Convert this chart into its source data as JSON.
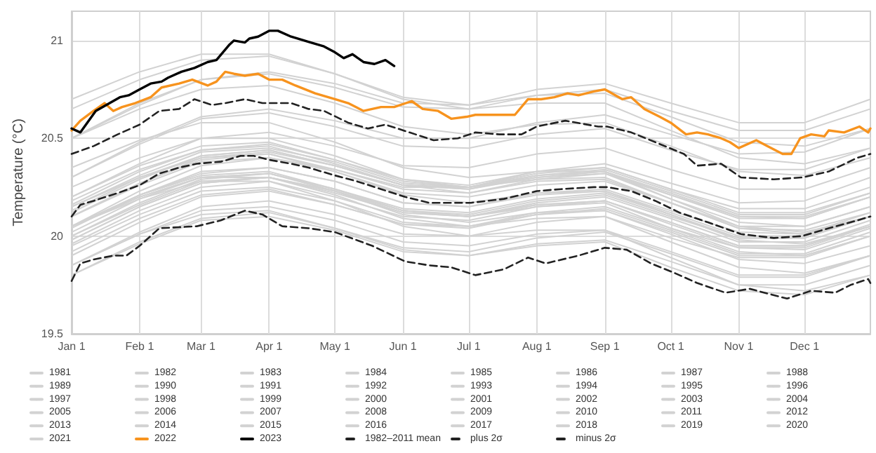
{
  "chart_data": {
    "type": "line",
    "ylabel": "Temperature (°C)",
    "xlim": [
      "--01-01",
      "--12-31"
    ],
    "ylim": [
      19.5,
      21.15
    ],
    "xticks": [
      {
        "value": "--01-01",
        "label": "Jan 1"
      },
      {
        "value": "--02-01",
        "label": "Feb 1"
      },
      {
        "value": "--03-01",
        "label": "Mar 1"
      },
      {
        "value": "--04-01",
        "label": "Apr 1"
      },
      {
        "value": "--05-01",
        "label": "May 1"
      },
      {
        "value": "--06-01",
        "label": "Jun 1"
      },
      {
        "value": "--07-01",
        "label": "Jul 1"
      },
      {
        "value": "--08-01",
        "label": "Aug 1"
      },
      {
        "value": "--09-01",
        "label": "Sep 1"
      },
      {
        "value": "--10-01",
        "label": "Oct 1"
      },
      {
        "value": "--11-01",
        "label": "Nov 1"
      },
      {
        "value": "--12-01",
        "label": "Dec 1"
      }
    ],
    "yticks": [
      19.5,
      20,
      20.5,
      21
    ],
    "grid": true,
    "legend": "bottom",
    "line_style": "solid",
    "x": [
      "--01-01",
      "--02-01",
      "--03-01",
      "--04-01",
      "--05-01",
      "--06-01",
      "--07-01",
      "--08-01",
      "--09-01",
      "--10-01",
      "--11-01",
      "--12-01",
      "--12-31"
    ],
    "series": [
      {
        "name": "1981",
        "color": "#d2d2d2",
        "values": [
          19.85,
          20.01,
          20.13,
          20.15,
          20.08,
          19.97,
          19.95,
          20.01,
          20.03,
          19.92,
          19.8,
          19.8,
          19.9
        ]
      },
      {
        "name": "1982",
        "color": "#d2d2d2",
        "values": [
          19.9,
          20.07,
          20.2,
          20.23,
          20.16,
          20.06,
          20.05,
          20.12,
          20.15,
          20.04,
          19.94,
          19.94,
          20.05
        ]
      },
      {
        "name": "1983",
        "color": "#d2d2d2",
        "values": [
          20.05,
          20.2,
          20.3,
          20.32,
          20.23,
          20.11,
          20.07,
          20.12,
          20.13,
          20.01,
          19.88,
          19.86,
          19.95
        ]
      },
      {
        "name": "1984",
        "color": "#d2d2d2",
        "values": [
          19.85,
          20.01,
          20.11,
          20.13,
          20.04,
          19.93,
          19.9,
          19.95,
          19.97,
          19.84,
          19.72,
          19.7,
          19.8
        ]
      },
      {
        "name": "1985",
        "color": "#d2d2d2",
        "values": [
          19.8,
          19.96,
          20.08,
          20.1,
          20.03,
          19.92,
          19.9,
          19.96,
          19.98,
          19.87,
          19.75,
          19.75,
          19.85
        ]
      },
      {
        "name": "1986",
        "color": "#d2d2d2",
        "values": [
          19.85,
          20.02,
          20.15,
          20.18,
          20.11,
          20.01,
          20.0,
          20.07,
          20.1,
          19.99,
          19.89,
          19.89,
          20.0
        ]
      },
      {
        "name": "1987",
        "color": "#d2d2d2",
        "values": [
          20.0,
          20.16,
          20.28,
          20.3,
          20.23,
          20.12,
          20.1,
          20.16,
          20.18,
          20.07,
          19.95,
          19.95,
          20.05
        ]
      },
      {
        "name": "1988",
        "color": "#d2d2d2",
        "values": [
          20.05,
          20.19,
          20.28,
          20.28,
          20.18,
          20.05,
          20.0,
          20.03,
          20.03,
          19.89,
          19.75,
          19.72,
          19.8
        ]
      },
      {
        "name": "1989",
        "color": "#d2d2d2",
        "values": [
          19.8,
          19.97,
          20.09,
          20.12,
          20.04,
          19.94,
          19.92,
          19.99,
          20.02,
          19.91,
          19.79,
          19.79,
          19.9
        ]
      },
      {
        "name": "1990",
        "color": "#d2d2d2",
        "values": [
          19.95,
          20.11,
          20.23,
          20.25,
          20.18,
          20.07,
          20.05,
          20.11,
          20.13,
          20.02,
          19.9,
          19.9,
          20.0
        ]
      },
      {
        "name": "1991",
        "color": "#d2d2d2",
        "values": [
          19.98,
          20.15,
          20.27,
          20.3,
          20.22,
          20.12,
          20.1,
          20.17,
          20.2,
          20.09,
          19.97,
          19.97,
          20.08
        ]
      },
      {
        "name": "1992",
        "color": "#d2d2d2",
        "values": [
          20.05,
          20.2,
          20.3,
          20.3,
          20.21,
          20.09,
          20.05,
          20.09,
          20.1,
          19.97,
          19.84,
          19.81,
          19.9
        ]
      },
      {
        "name": "1993",
        "color": "#d2d2d2",
        "values": [
          19.92,
          20.09,
          20.21,
          20.24,
          20.16,
          20.06,
          20.04,
          20.11,
          20.14,
          20.03,
          19.91,
          19.91,
          20.02
        ]
      },
      {
        "name": "1994",
        "color": "#d2d2d2",
        "values": [
          20.0,
          20.17,
          20.29,
          20.32,
          20.24,
          20.14,
          20.12,
          20.19,
          20.22,
          20.11,
          19.99,
          19.99,
          20.1
        ]
      },
      {
        "name": "1995",
        "color": "#d2d2d2",
        "values": [
          20.05,
          20.21,
          20.31,
          20.33,
          20.24,
          20.13,
          20.1,
          20.15,
          20.17,
          20.04,
          19.92,
          19.9,
          20.0
        ]
      },
      {
        "name": "1996",
        "color": "#d2d2d2",
        "values": [
          20.02,
          20.19,
          20.3,
          20.32,
          20.24,
          20.13,
          20.1,
          20.16,
          20.18,
          20.06,
          19.94,
          19.93,
          20.04
        ]
      },
      {
        "name": "1997",
        "color": "#d2d2d2",
        "values": [
          20.05,
          20.23,
          20.36,
          20.4,
          20.34,
          20.25,
          20.25,
          20.33,
          20.37,
          20.27,
          20.17,
          20.18,
          20.3
        ]
      },
      {
        "name": "1998",
        "color": "#d2d2d2",
        "values": [
          20.35,
          20.49,
          20.58,
          20.58,
          20.48,
          20.35,
          20.3,
          20.33,
          20.33,
          20.19,
          20.05,
          20.02,
          20.1
        ]
      },
      {
        "name": "1999",
        "color": "#d2d2d2",
        "values": [
          19.96,
          20.13,
          20.25,
          20.28,
          20.2,
          20.1,
          20.08,
          20.15,
          20.18,
          20.07,
          19.95,
          19.95,
          20.06
        ]
      },
      {
        "name": "2000",
        "color": "#d2d2d2",
        "values": [
          20.04,
          20.21,
          20.32,
          20.35,
          20.28,
          20.17,
          20.15,
          20.22,
          20.24,
          20.13,
          20.02,
          20.01,
          20.12
        ]
      },
      {
        "name": "2001",
        "color": "#d2d2d2",
        "values": [
          20.1,
          20.26,
          20.38,
          20.4,
          20.33,
          20.22,
          20.2,
          20.26,
          20.28,
          20.17,
          20.05,
          20.05,
          20.15
        ]
      },
      {
        "name": "2002",
        "color": "#d2d2d2",
        "values": [
          20.15,
          20.31,
          20.43,
          20.45,
          20.38,
          20.27,
          20.25,
          20.31,
          20.33,
          20.22,
          20.1,
          20.1,
          20.2
        ]
      },
      {
        "name": "2003",
        "color": "#d2d2d2",
        "values": [
          20.2,
          20.36,
          20.46,
          20.48,
          20.39,
          20.28,
          20.25,
          20.3,
          20.32,
          20.19,
          20.07,
          20.05,
          20.15
        ]
      },
      {
        "name": "2004",
        "color": "#d2d2d2",
        "values": [
          20.12,
          20.29,
          20.41,
          20.44,
          20.36,
          20.26,
          20.24,
          20.31,
          20.34,
          20.23,
          20.11,
          20.11,
          20.22
        ]
      },
      {
        "name": "2005",
        "color": "#d2d2d2",
        "values": [
          20.18,
          20.34,
          20.44,
          20.46,
          20.37,
          20.26,
          20.22,
          20.28,
          20.29,
          20.17,
          20.04,
          20.03,
          20.12
        ]
      },
      {
        "name": "2006",
        "color": "#d2d2d2",
        "values": [
          20.1,
          20.27,
          20.39,
          20.42,
          20.34,
          20.24,
          20.22,
          20.29,
          20.32,
          20.21,
          20.09,
          20.09,
          20.2
        ]
      },
      {
        "name": "2007",
        "color": "#d2d2d2",
        "values": [
          20.15,
          20.3,
          20.4,
          20.42,
          20.33,
          20.21,
          20.17,
          20.22,
          20.23,
          20.11,
          19.98,
          19.96,
          20.05
        ]
      },
      {
        "name": "2008",
        "color": "#d2d2d2",
        "values": [
          19.98,
          20.15,
          20.27,
          20.3,
          20.23,
          20.13,
          20.11,
          20.18,
          20.21,
          20.1,
          19.99,
          19.99,
          20.1
        ]
      },
      {
        "name": "2009",
        "color": "#d2d2d2",
        "values": [
          20.1,
          20.27,
          20.4,
          20.43,
          20.36,
          20.26,
          20.25,
          20.32,
          20.35,
          20.24,
          20.14,
          20.14,
          20.25
        ]
      },
      {
        "name": "2010",
        "color": "#d2d2d2",
        "values": [
          20.25,
          20.4,
          20.5,
          20.5,
          20.41,
          20.29,
          20.25,
          20.29,
          20.3,
          20.17,
          20.04,
          20.01,
          20.1
        ]
      },
      {
        "name": "2011",
        "color": "#d2d2d2",
        "values": [
          20.05,
          20.21,
          20.33,
          20.35,
          20.28,
          20.17,
          20.15,
          20.21,
          20.23,
          20.12,
          20.0,
          20.0,
          20.1
        ]
      },
      {
        "name": "2012",
        "color": "#d2d2d2",
        "values": [
          20.13,
          20.3,
          20.41,
          20.44,
          20.36,
          20.26,
          20.24,
          20.3,
          20.33,
          20.21,
          20.1,
          20.09,
          20.2
        ]
      },
      {
        "name": "2013",
        "color": "#d2d2d2",
        "values": [
          20.16,
          20.33,
          20.44,
          20.47,
          20.39,
          20.29,
          20.26,
          20.33,
          20.35,
          20.24,
          20.12,
          20.12,
          20.22
        ]
      },
      {
        "name": "2014",
        "color": "#d2d2d2",
        "values": [
          20.2,
          20.37,
          20.5,
          20.53,
          20.46,
          20.36,
          20.35,
          20.42,
          20.45,
          20.34,
          20.24,
          20.24,
          20.35
        ]
      },
      {
        "name": "2015",
        "color": "#d2d2d2",
        "values": [
          20.3,
          20.48,
          20.61,
          20.65,
          20.59,
          20.5,
          20.5,
          20.58,
          20.62,
          20.52,
          20.42,
          20.43,
          20.55
        ]
      },
      {
        "name": "2016",
        "color": "#d2d2d2",
        "values": [
          20.7,
          20.84,
          20.93,
          20.93,
          20.83,
          20.7,
          20.65,
          20.68,
          20.68,
          20.54,
          20.4,
          20.37,
          20.45
        ]
      },
      {
        "name": "2017",
        "color": "#d2d2d2",
        "values": [
          20.5,
          20.65,
          20.75,
          20.77,
          20.68,
          20.56,
          20.52,
          20.57,
          20.58,
          20.46,
          20.33,
          20.31,
          20.4
        ]
      },
      {
        "name": "2018",
        "color": "#d2d2d2",
        "values": [
          20.3,
          20.47,
          20.6,
          20.63,
          20.56,
          20.46,
          20.45,
          20.52,
          20.55,
          20.44,
          20.34,
          20.34,
          20.45
        ]
      },
      {
        "name": "2019",
        "color": "#d2d2d2",
        "values": [
          20.5,
          20.67,
          20.8,
          20.83,
          20.76,
          20.66,
          20.65,
          20.72,
          20.75,
          20.64,
          20.54,
          20.54,
          20.65
        ]
      },
      {
        "name": "2020",
        "color": "#d2d2d2",
        "values": [
          20.65,
          20.8,
          20.9,
          20.92,
          20.83,
          20.71,
          20.67,
          20.72,
          20.73,
          20.61,
          20.48,
          20.46,
          20.55
        ]
      },
      {
        "name": "2021",
        "color": "#d2d2d2",
        "values": [
          20.5,
          20.68,
          20.8,
          20.84,
          20.78,
          20.68,
          20.67,
          20.75,
          20.78,
          20.68,
          20.58,
          20.58,
          20.7
        ]
      },
      {
        "name": "2022",
        "color": "#f7931e",
        "x": [
          "--01-01",
          "--01-05",
          "--01-11",
          "--01-16",
          "--01-20",
          "--01-24",
          "--01-30",
          "--02-06",
          "--02-11",
          "--02-19",
          "--02-25",
          "--03-04",
          "--03-08",
          "--03-12",
          "--03-16",
          "--03-21",
          "--03-27",
          "--04-01",
          "--04-07",
          "--04-13",
          "--04-22",
          "--05-01",
          "--05-07",
          "--05-14",
          "--05-22",
          "--05-28",
          "--06-05",
          "--06-10",
          "--06-17",
          "--06-23",
          "--06-30",
          "--07-04",
          "--07-15",
          "--07-22",
          "--07-28",
          "--08-03",
          "--08-09",
          "--08-15",
          "--08-20",
          "--08-27",
          "--09-01",
          "--09-09",
          "--09-13",
          "--09-19",
          "--09-26",
          "--10-01",
          "--10-08",
          "--10-13",
          "--10-18",
          "--10-24",
          "--10-28",
          "--11-01",
          "--11-09",
          "--11-14",
          "--11-21",
          "--11-25",
          "--11-29",
          "--12-04",
          "--12-10",
          "--12-12",
          "--12-19",
          "--12-26",
          "--12-30",
          "--12-31"
        ],
        "values": [
          20.54,
          20.59,
          20.64,
          20.68,
          20.64,
          20.66,
          20.68,
          20.71,
          20.76,
          20.78,
          20.8,
          20.77,
          20.79,
          20.84,
          20.83,
          20.82,
          20.83,
          20.8,
          20.8,
          20.77,
          20.73,
          20.7,
          20.68,
          20.64,
          20.66,
          20.66,
          20.69,
          20.65,
          20.64,
          20.6,
          20.61,
          20.62,
          20.62,
          20.62,
          20.7,
          20.7,
          20.71,
          20.73,
          20.72,
          20.74,
          20.75,
          20.7,
          20.71,
          20.65,
          20.61,
          20.58,
          20.52,
          20.53,
          20.52,
          20.5,
          20.48,
          20.45,
          20.49,
          20.46,
          20.42,
          20.42,
          20.5,
          20.52,
          20.51,
          20.54,
          20.53,
          20.56,
          20.53,
          20.55
        ]
      },
      {
        "name": "2023",
        "color": "#000000",
        "x": [
          "--01-01",
          "--01-05",
          "--01-12",
          "--01-23",
          "--01-27",
          "--02-01",
          "--02-06",
          "--02-11",
          "--02-14",
          "--02-20",
          "--02-26",
          "--03-04",
          "--03-08",
          "--03-14",
          "--03-16",
          "--03-21",
          "--03-23",
          "--03-27",
          "--04-01",
          "--04-05",
          "--04-11",
          "--04-20",
          "--04-23",
          "--04-26",
          "--05-01",
          "--05-05",
          "--05-09",
          "--05-14",
          "--05-19",
          "--05-24",
          "--05-28"
        ],
        "values": [
          20.55,
          20.53,
          20.64,
          20.71,
          20.72,
          20.75,
          20.78,
          20.79,
          20.81,
          20.84,
          20.86,
          20.89,
          20.9,
          20.98,
          21.0,
          20.99,
          21.01,
          21.02,
          21.05,
          21.05,
          21.02,
          20.99,
          20.98,
          20.97,
          20.94,
          20.91,
          20.93,
          20.89,
          20.88,
          20.9,
          20.87
        ]
      },
      {
        "name": "1982–2011 mean",
        "color": "#222222",
        "line_style": "dashed",
        "x": [
          "--01-01",
          "--01-05",
          "--01-11",
          "--01-22",
          "--02-01",
          "--02-10",
          "--02-19",
          "--02-27",
          "--03-10",
          "--03-19",
          "--03-25",
          "--04-01",
          "--04-11",
          "--04-19",
          "--05-01",
          "--05-11",
          "--05-22",
          "--06-02",
          "--06-13",
          "--07-02",
          "--07-17",
          "--08-01",
          "--08-12",
          "--08-27",
          "--09-02",
          "--09-13",
          "--09-24",
          "--10-05",
          "--10-18",
          "--11-02",
          "--11-17",
          "--11-30",
          "--12-12",
          "--12-25",
          "--12-31"
        ],
        "values": [
          20.1,
          20.16,
          20.18,
          20.22,
          20.26,
          20.32,
          20.35,
          20.37,
          20.38,
          20.41,
          20.41,
          20.39,
          20.37,
          20.35,
          20.31,
          20.28,
          20.24,
          20.2,
          20.17,
          20.17,
          20.19,
          20.23,
          20.24,
          20.25,
          20.25,
          20.23,
          20.18,
          20.12,
          20.07,
          20.01,
          19.99,
          20.0,
          20.04,
          20.08,
          20.1
        ]
      },
      {
        "name": "plus 2σ",
        "color": "#222222",
        "line_style": "dashed",
        "x": [
          "--01-01",
          "--01-11",
          "--01-22",
          "--02-01",
          "--02-10",
          "--02-19",
          "--02-26",
          "--03-06",
          "--03-12",
          "--03-21",
          "--03-29",
          "--04-11",
          "--04-19",
          "--04-26",
          "--05-07",
          "--05-16",
          "--05-24",
          "--06-04",
          "--06-15",
          "--06-26",
          "--07-04",
          "--07-15",
          "--07-25",
          "--08-01",
          "--08-14",
          "--08-29",
          "--09-02",
          "--09-13",
          "--09-24",
          "--10-07",
          "--10-13",
          "--10-24",
          "--11-02",
          "--11-17",
          "--11-30",
          "--12-12",
          "--12-25",
          "--12-31"
        ],
        "values": [
          20.42,
          20.46,
          20.52,
          20.57,
          20.64,
          20.65,
          20.7,
          20.67,
          20.68,
          20.7,
          20.68,
          20.68,
          20.65,
          20.64,
          20.58,
          20.55,
          20.57,
          20.53,
          20.49,
          20.5,
          20.53,
          20.52,
          20.52,
          20.56,
          20.59,
          20.56,
          20.56,
          20.53,
          20.48,
          20.42,
          20.36,
          20.37,
          20.3,
          20.29,
          20.3,
          20.33,
          20.4,
          20.42
        ]
      },
      {
        "name": "minus 2σ",
        "color": "#222222",
        "line_style": "dashed",
        "x": [
          "--01-01",
          "--01-05",
          "--01-11",
          "--01-20",
          "--01-26",
          "--02-01",
          "--02-10",
          "--02-27",
          "--03-10",
          "--03-21",
          "--03-29",
          "--04-07",
          "--04-19",
          "--05-01",
          "--05-18",
          "--06-02",
          "--06-13",
          "--06-23",
          "--07-04",
          "--07-17",
          "--07-28",
          "--08-05",
          "--08-20",
          "--09-01",
          "--09-11",
          "--09-22",
          "--10-03",
          "--10-13",
          "--10-26",
          "--11-06",
          "--11-23",
          "--12-04",
          "--12-15",
          "--12-22",
          "--12-30",
          "--12-31"
        ],
        "values": [
          19.77,
          19.86,
          19.88,
          19.9,
          19.9,
          19.95,
          20.04,
          20.05,
          20.08,
          20.13,
          20.11,
          20.05,
          20.04,
          20.02,
          19.95,
          19.87,
          19.85,
          19.84,
          19.8,
          19.83,
          19.89,
          19.86,
          19.9,
          19.94,
          19.93,
          19.86,
          19.81,
          19.76,
          19.71,
          19.73,
          19.68,
          19.72,
          19.71,
          19.75,
          19.78,
          19.76
        ]
      }
    ]
  }
}
